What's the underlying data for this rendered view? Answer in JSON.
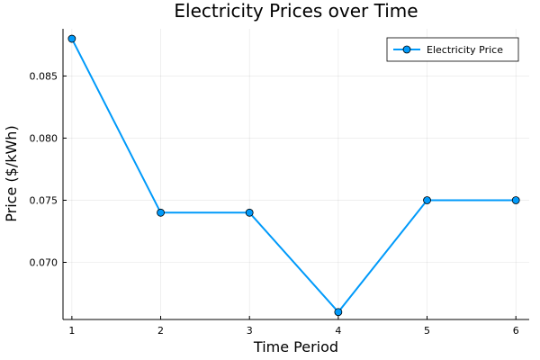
{
  "chart_data": {
    "type": "line",
    "title": "Electricity Prices over Time",
    "xlabel": "Time Period",
    "ylabel": "Price ($/kWh)",
    "x": [
      1,
      2,
      3,
      4,
      5,
      6
    ],
    "series": [
      {
        "name": "Electricity Price",
        "values": [
          0.088,
          0.074,
          0.074,
          0.066,
          0.075,
          0.075
        ],
        "color": "#009AFA"
      }
    ],
    "xlim": [
      0.9,
      6.15
    ],
    "ylim": [
      0.0654,
      0.0888
    ],
    "xticks": [
      1,
      2,
      3,
      4,
      5,
      6
    ],
    "xtick_labels": [
      "1",
      "2",
      "3",
      "4",
      "5",
      "6"
    ],
    "yticks": [
      0.07,
      0.075,
      0.08,
      0.085
    ],
    "ytick_labels": [
      "0.070",
      "0.075",
      "0.080",
      "0.085"
    ],
    "grid": true,
    "legend_position": "top-right"
  }
}
